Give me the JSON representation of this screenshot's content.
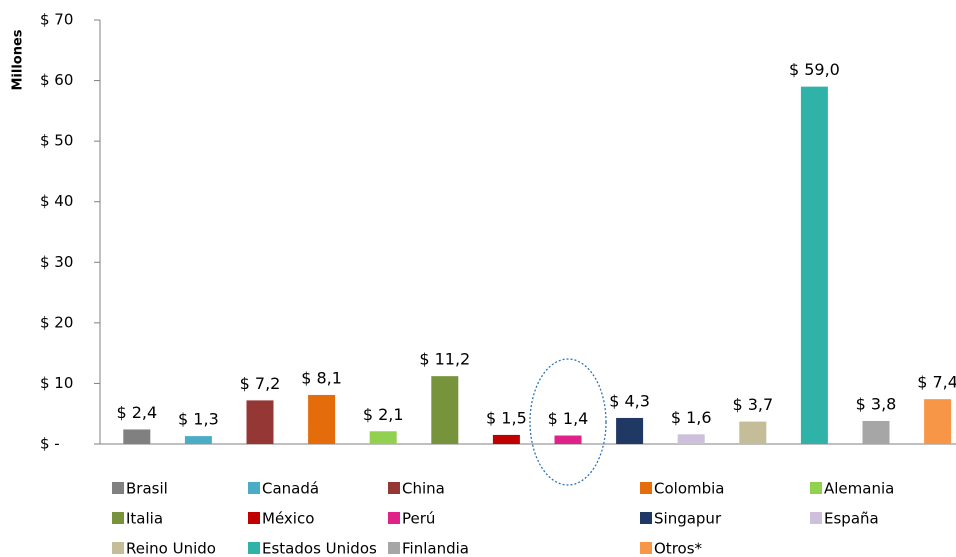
{
  "chart_data": {
    "type": "bar",
    "y_label": "Millones",
    "categories": [
      "Brasil",
      "Canadá",
      "China",
      "Colombia",
      "Alemania",
      "Italia",
      "México",
      "Perú",
      "Singapur",
      "España",
      "Reino Unido",
      "Estados Unidos",
      "Finlandia",
      "Otros*"
    ],
    "values": [
      2.4,
      1.3,
      7.2,
      8.1,
      2.1,
      11.2,
      1.5,
      1.4,
      4.3,
      1.6,
      3.7,
      59.0,
      3.8,
      7.4
    ],
    "value_labels": [
      "$ 2,4",
      "$ 1,3",
      "$ 7,2",
      "$ 8,1",
      "$ 2,1",
      "$ 11,2",
      "$ 1,5",
      "$ 1,4",
      "$ 4,3",
      "$ 1,6",
      "$ 3,7",
      "$ 59,0",
      "$ 3,8",
      "$ 7,4"
    ],
    "colors": [
      "#808080",
      "#4bacc6",
      "#953735",
      "#e46c0a",
      "#92d050",
      "#77933c",
      "#c00000",
      "#e0218a",
      "#1f3864",
      "#ccc0da",
      "#c4bd97",
      "#2fb3a8",
      "#a6a6a6",
      "#f79646"
    ],
    "ylim": [
      0,
      70
    ],
    "yticks": [
      {
        "value": 0,
        "label": "$ -"
      },
      {
        "value": 10,
        "label": "$ 10"
      },
      {
        "value": 20,
        "label": "$ 20"
      },
      {
        "value": 30,
        "label": "$ 30"
      },
      {
        "value": 40,
        "label": "$ 40"
      },
      {
        "value": 50,
        "label": "$ 50"
      },
      {
        "value": 60,
        "label": "$ 60"
      },
      {
        "value": 70,
        "label": "$ 70"
      }
    ],
    "grid": false,
    "legend": "bottom"
  }
}
